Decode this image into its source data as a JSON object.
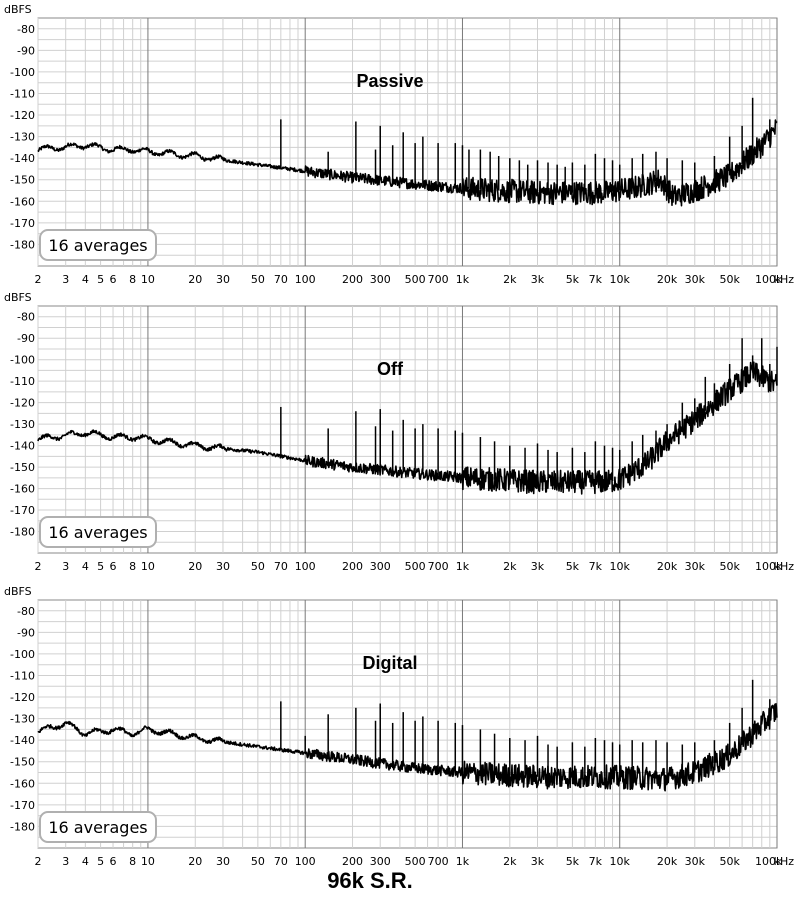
{
  "caption": "96k S.R.",
  "chart_data": [
    {
      "type": "line",
      "title": "Passive",
      "ylabel": "dBFS",
      "xlabel": "",
      "x_unit": "kHz",
      "xscale": "log",
      "xlim": [
        2,
        100000
      ],
      "ylim": [
        -190,
        -75
      ],
      "grid": true,
      "y_ticks": [
        "-80",
        "-90",
        "-100",
        "-110",
        "-120",
        "-130",
        "-140",
        "-150",
        "-160",
        "-170",
        "-180"
      ],
      "y_tick_values": [
        -80,
        -90,
        -100,
        -110,
        -120,
        -130,
        -140,
        -150,
        -160,
        -170,
        -180
      ],
      "x_tick_labels": [
        "2",
        "3",
        "4",
        "5",
        "6",
        "8",
        "10",
        "20",
        "30",
        "50",
        "70",
        "100",
        "200",
        "300",
        "500",
        "700",
        "1k",
        "2k",
        "3k",
        "5k",
        "7k",
        "10k",
        "20k",
        "30k",
        "50k",
        "100k"
      ],
      "x_tick_values": [
        2,
        3,
        4,
        5,
        6,
        8,
        10,
        20,
        30,
        50,
        70,
        100,
        200,
        300,
        500,
        700,
        1000,
        2000,
        3000,
        5000,
        7000,
        10000,
        20000,
        30000,
        50000,
        100000
      ],
      "x_unit_label": "kHz",
      "badge": "16 averages",
      "series": [
        {
          "baseline": [
            [
              2,
              -136
            ],
            [
              4,
              -134
            ],
            [
              6,
              -136
            ],
            [
              8,
              -136
            ],
            [
              10,
              -137
            ],
            [
              20,
              -139
            ],
            [
              50,
              -143
            ],
            [
              100,
              -146
            ],
            [
              200,
              -149
            ],
            [
              500,
              -152
            ],
            [
              1000,
              -154
            ],
            [
              3000,
              -156
            ],
            [
              8000,
              -156
            ],
            [
              12000,
              -154
            ],
            [
              15000,
              -152
            ],
            [
              18000,
              -150
            ],
            [
              22000,
              -158
            ],
            [
              30000,
              -155
            ],
            [
              50000,
              -148
            ],
            [
              80000,
              -134
            ],
            [
              100000,
              -126
            ]
          ],
          "spikes": [
            [
              70,
              -122
            ],
            [
              140,
              -137
            ],
            [
              210,
              -123
            ],
            [
              280,
              -136
            ],
            [
              300,
              -125
            ],
            [
              360,
              -134
            ],
            [
              420,
              -128
            ],
            [
              500,
              -133
            ],
            [
              560,
              -130
            ],
            [
              700,
              -133
            ],
            [
              900,
              -133
            ],
            [
              1000,
              -134
            ],
            [
              1100,
              -136
            ],
            [
              1300,
              -136
            ],
            [
              1500,
              -137
            ],
            [
              1700,
              -139
            ],
            [
              2000,
              -140
            ],
            [
              2300,
              -141
            ],
            [
              2600,
              -143
            ],
            [
              3000,
              -141
            ],
            [
              3500,
              -142
            ],
            [
              4000,
              -143
            ],
            [
              4500,
              -144
            ],
            [
              5000,
              -142
            ],
            [
              6000,
              -143
            ],
            [
              7000,
              -138
            ],
            [
              8000,
              -140
            ],
            [
              9000,
              -141
            ],
            [
              10000,
              -143
            ],
            [
              12000,
              -140
            ],
            [
              14000,
              -138
            ],
            [
              17000,
              -137
            ],
            [
              20000,
              -140
            ],
            [
              25000,
              -141
            ],
            [
              30000,
              -142
            ],
            [
              40000,
              -139
            ],
            [
              50000,
              -130
            ],
            [
              60000,
              -125
            ],
            [
              70000,
              -112
            ],
            [
              90000,
              -122
            ]
          ]
        }
      ]
    },
    {
      "type": "line",
      "title": "Off",
      "ylabel": "dBFS",
      "xlabel": "",
      "x_unit": "kHz",
      "xscale": "log",
      "xlim": [
        2,
        100000
      ],
      "ylim": [
        -190,
        -75
      ],
      "grid": true,
      "y_ticks": [
        "-80",
        "-90",
        "-100",
        "-110",
        "-120",
        "-130",
        "-140",
        "-150",
        "-160",
        "-170",
        "-180"
      ],
      "y_tick_values": [
        -80,
        -90,
        -100,
        -110,
        -120,
        -130,
        -140,
        -150,
        -160,
        -170,
        -180
      ],
      "x_tick_labels": [
        "2",
        "3",
        "4",
        "5",
        "6",
        "8",
        "10",
        "20",
        "30",
        "50",
        "70",
        "100",
        "200",
        "300",
        "500",
        "700",
        "1k",
        "2k",
        "3k",
        "5k",
        "7k",
        "10k",
        "20k",
        "30k",
        "50k",
        "100k"
      ],
      "x_tick_values": [
        2,
        3,
        4,
        5,
        6,
        8,
        10,
        20,
        30,
        50,
        70,
        100,
        200,
        300,
        500,
        700,
        1000,
        2000,
        3000,
        5000,
        7000,
        10000,
        20000,
        30000,
        50000,
        100000
      ],
      "x_unit_label": "kHz",
      "badge": "16 averages",
      "series": [
        {
          "baseline": [
            [
              2,
              -137
            ],
            [
              4,
              -134
            ],
            [
              6,
              -136
            ],
            [
              8,
              -136
            ],
            [
              10,
              -137
            ],
            [
              20,
              -140
            ],
            [
              50,
              -143
            ],
            [
              100,
              -147
            ],
            [
              200,
              -150
            ],
            [
              500,
              -153
            ],
            [
              1000,
              -155
            ],
            [
              3000,
              -157
            ],
            [
              8000,
              -157
            ],
            [
              10000,
              -156
            ],
            [
              15000,
              -148
            ],
            [
              20000,
              -138
            ],
            [
              30000,
              -128
            ],
            [
              50000,
              -114
            ],
            [
              70000,
              -106
            ],
            [
              100000,
              -112
            ]
          ],
          "spikes": [
            [
              70,
              -122
            ],
            [
              140,
              -132
            ],
            [
              210,
              -124
            ],
            [
              280,
              -131
            ],
            [
              300,
              -123
            ],
            [
              360,
              -133
            ],
            [
              420,
              -128
            ],
            [
              500,
              -132
            ],
            [
              560,
              -130
            ],
            [
              700,
              -132
            ],
            [
              900,
              -133
            ],
            [
              1000,
              -134
            ],
            [
              1300,
              -136
            ],
            [
              1600,
              -138
            ],
            [
              2000,
              -140
            ],
            [
              2500,
              -141
            ],
            [
              3000,
              -139
            ],
            [
              3500,
              -142
            ],
            [
              4000,
              -143
            ],
            [
              5000,
              -141
            ],
            [
              6000,
              -143
            ],
            [
              7000,
              -138
            ],
            [
              8000,
              -140
            ],
            [
              9000,
              -141
            ],
            [
              10000,
              -142
            ],
            [
              12000,
              -138
            ],
            [
              14000,
              -135
            ],
            [
              17000,
              -133
            ],
            [
              20000,
              -130
            ],
            [
              25000,
              -120
            ],
            [
              30000,
              -118
            ],
            [
              35000,
              -108
            ],
            [
              40000,
              -111
            ],
            [
              50000,
              -102
            ],
            [
              60000,
              -90
            ],
            [
              70000,
              -98
            ],
            [
              80000,
              -90
            ],
            [
              90000,
              -102
            ],
            [
              100000,
              -94
            ]
          ]
        }
      ]
    },
    {
      "type": "line",
      "title": "Digital",
      "ylabel": "dBFS",
      "xlabel": "",
      "x_unit": "kHz",
      "xscale": "log",
      "xlim": [
        2,
        100000
      ],
      "ylim": [
        -190,
        -75
      ],
      "grid": true,
      "y_ticks": [
        "-80",
        "-90",
        "-100",
        "-110",
        "-120",
        "-130",
        "-140",
        "-150",
        "-160",
        "-170",
        "-180"
      ],
      "y_tick_values": [
        -80,
        -90,
        -100,
        -110,
        -120,
        -130,
        -140,
        -150,
        -160,
        -170,
        -180
      ],
      "x_tick_labels": [
        "2",
        "3",
        "4",
        "5",
        "6",
        "8",
        "10",
        "20",
        "30",
        "50",
        "70",
        "100",
        "200",
        "300",
        "500",
        "700",
        "1k",
        "2k",
        "3k",
        "5k",
        "7k",
        "10k",
        "20k",
        "30k",
        "50k",
        "100k"
      ],
      "x_tick_values": [
        2,
        3,
        4,
        5,
        6,
        8,
        10,
        20,
        30,
        50,
        70,
        100,
        200,
        300,
        500,
        700,
        1000,
        2000,
        3000,
        5000,
        7000,
        10000,
        20000,
        30000,
        50000,
        100000
      ],
      "x_unit_label": "kHz",
      "badge": "16 averages",
      "series": [
        {
          "baseline": [
            [
              2,
              -136
            ],
            [
              3,
              -132
            ],
            [
              4,
              -137
            ],
            [
              6,
              -135
            ],
            [
              8,
              -137
            ],
            [
              10,
              -135
            ],
            [
              20,
              -139
            ],
            [
              50,
              -143
            ],
            [
              100,
              -146
            ],
            [
              200,
              -149
            ],
            [
              500,
              -153
            ],
            [
              1000,
              -155
            ],
            [
              3000,
              -157
            ],
            [
              8000,
              -157
            ],
            [
              20000,
              -158
            ],
            [
              30000,
              -155
            ],
            [
              50000,
              -147
            ],
            [
              80000,
              -133
            ],
            [
              100000,
              -126
            ]
          ],
          "spikes": [
            [
              70,
              -122
            ],
            [
              100,
              -138
            ],
            [
              140,
              -128
            ],
            [
              210,
              -125
            ],
            [
              280,
              -131
            ],
            [
              300,
              -123
            ],
            [
              360,
              -132
            ],
            [
              420,
              -127
            ],
            [
              500,
              -131
            ],
            [
              560,
              -129
            ],
            [
              700,
              -131
            ],
            [
              900,
              -132
            ],
            [
              1000,
              -133
            ],
            [
              1300,
              -135
            ],
            [
              1600,
              -137
            ],
            [
              2000,
              -139
            ],
            [
              2500,
              -140
            ],
            [
              3000,
              -138
            ],
            [
              3500,
              -142
            ],
            [
              4000,
              -143
            ],
            [
              5000,
              -141
            ],
            [
              6000,
              -143
            ],
            [
              7000,
              -139
            ],
            [
              8000,
              -140
            ],
            [
              9000,
              -141
            ],
            [
              10000,
              -142
            ],
            [
              12000,
              -140
            ],
            [
              14000,
              -141
            ],
            [
              17000,
              -140
            ],
            [
              20000,
              -141
            ],
            [
              25000,
              -142
            ],
            [
              30000,
              -141
            ],
            [
              40000,
              -140
            ],
            [
              50000,
              -132
            ],
            [
              60000,
              -125
            ],
            [
              70000,
              -112
            ],
            [
              90000,
              -121
            ]
          ]
        }
      ]
    }
  ]
}
